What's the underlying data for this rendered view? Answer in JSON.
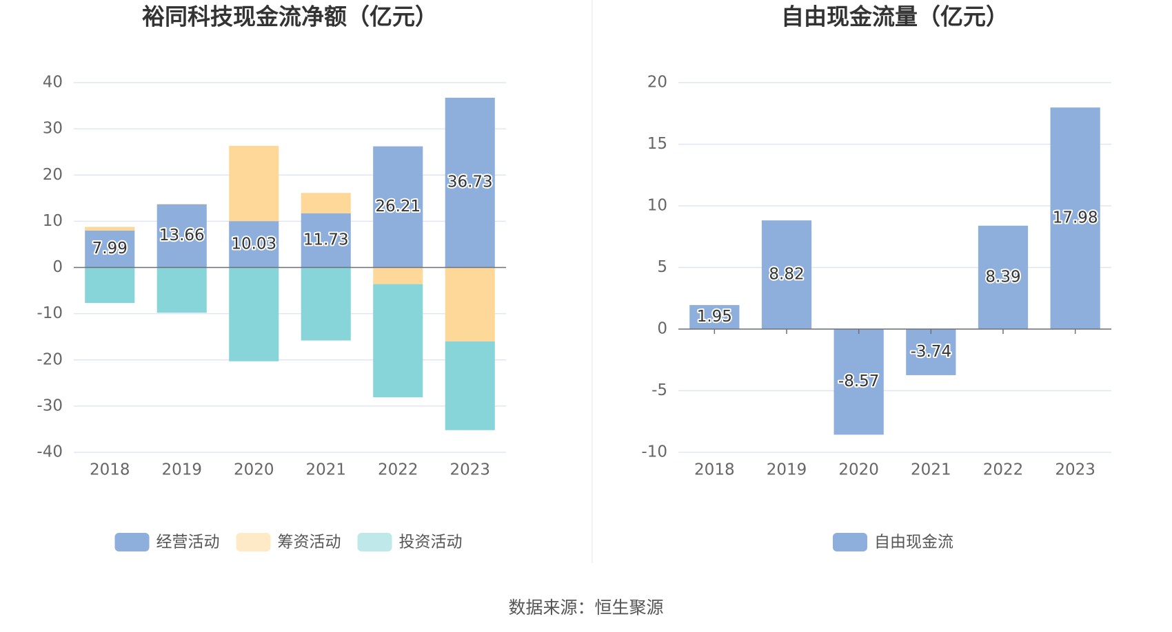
{
  "chart_data": [
    {
      "type": "bar",
      "stacked": true,
      "title": "裕同科技现金流净额（亿元）",
      "categories": [
        "2018",
        "2019",
        "2020",
        "2021",
        "2022",
        "2023"
      ],
      "series": [
        {
          "name": "经营活动",
          "color": "#8eaedb",
          "values": [
            7.99,
            13.66,
            10.03,
            11.73,
            26.21,
            36.73
          ],
          "value_labels": [
            "7.99",
            "13.66",
            "10.03",
            "11.73",
            "26.21",
            "36.73"
          ]
        },
        {
          "name": "筹资活动",
          "color": "#fdd899",
          "values": [
            0.8,
            0.1,
            16.3,
            4.4,
            -3.6,
            -16.0
          ]
        },
        {
          "name": "投资活动",
          "color": "#88d5d9",
          "values": [
            -7.7,
            -9.8,
            -20.3,
            -15.8,
            -24.5,
            -19.2
          ]
        }
      ],
      "ylim": [
        -40,
        40
      ],
      "yticks": [
        -40,
        -30,
        -20,
        -10,
        0,
        10,
        20,
        30,
        40
      ],
      "grid": true
    },
    {
      "type": "bar",
      "title": "自由现金流量（亿元）",
      "categories": [
        "2018",
        "2019",
        "2020",
        "2021",
        "2022",
        "2023"
      ],
      "series": [
        {
          "name": "自由现金流",
          "color": "#8eaedb",
          "values": [
            1.95,
            8.82,
            -8.57,
            -3.74,
            8.39,
            17.98
          ],
          "value_labels": [
            "1.95",
            "8.82",
            "-8.57",
            "-3.74",
            "8.39",
            "17.98"
          ]
        }
      ],
      "ylim": [
        -10,
        20
      ],
      "yticks": [
        -10,
        -5,
        0,
        5,
        10,
        15,
        20
      ],
      "grid": true
    }
  ],
  "source": "数据来源：恒生聚源"
}
